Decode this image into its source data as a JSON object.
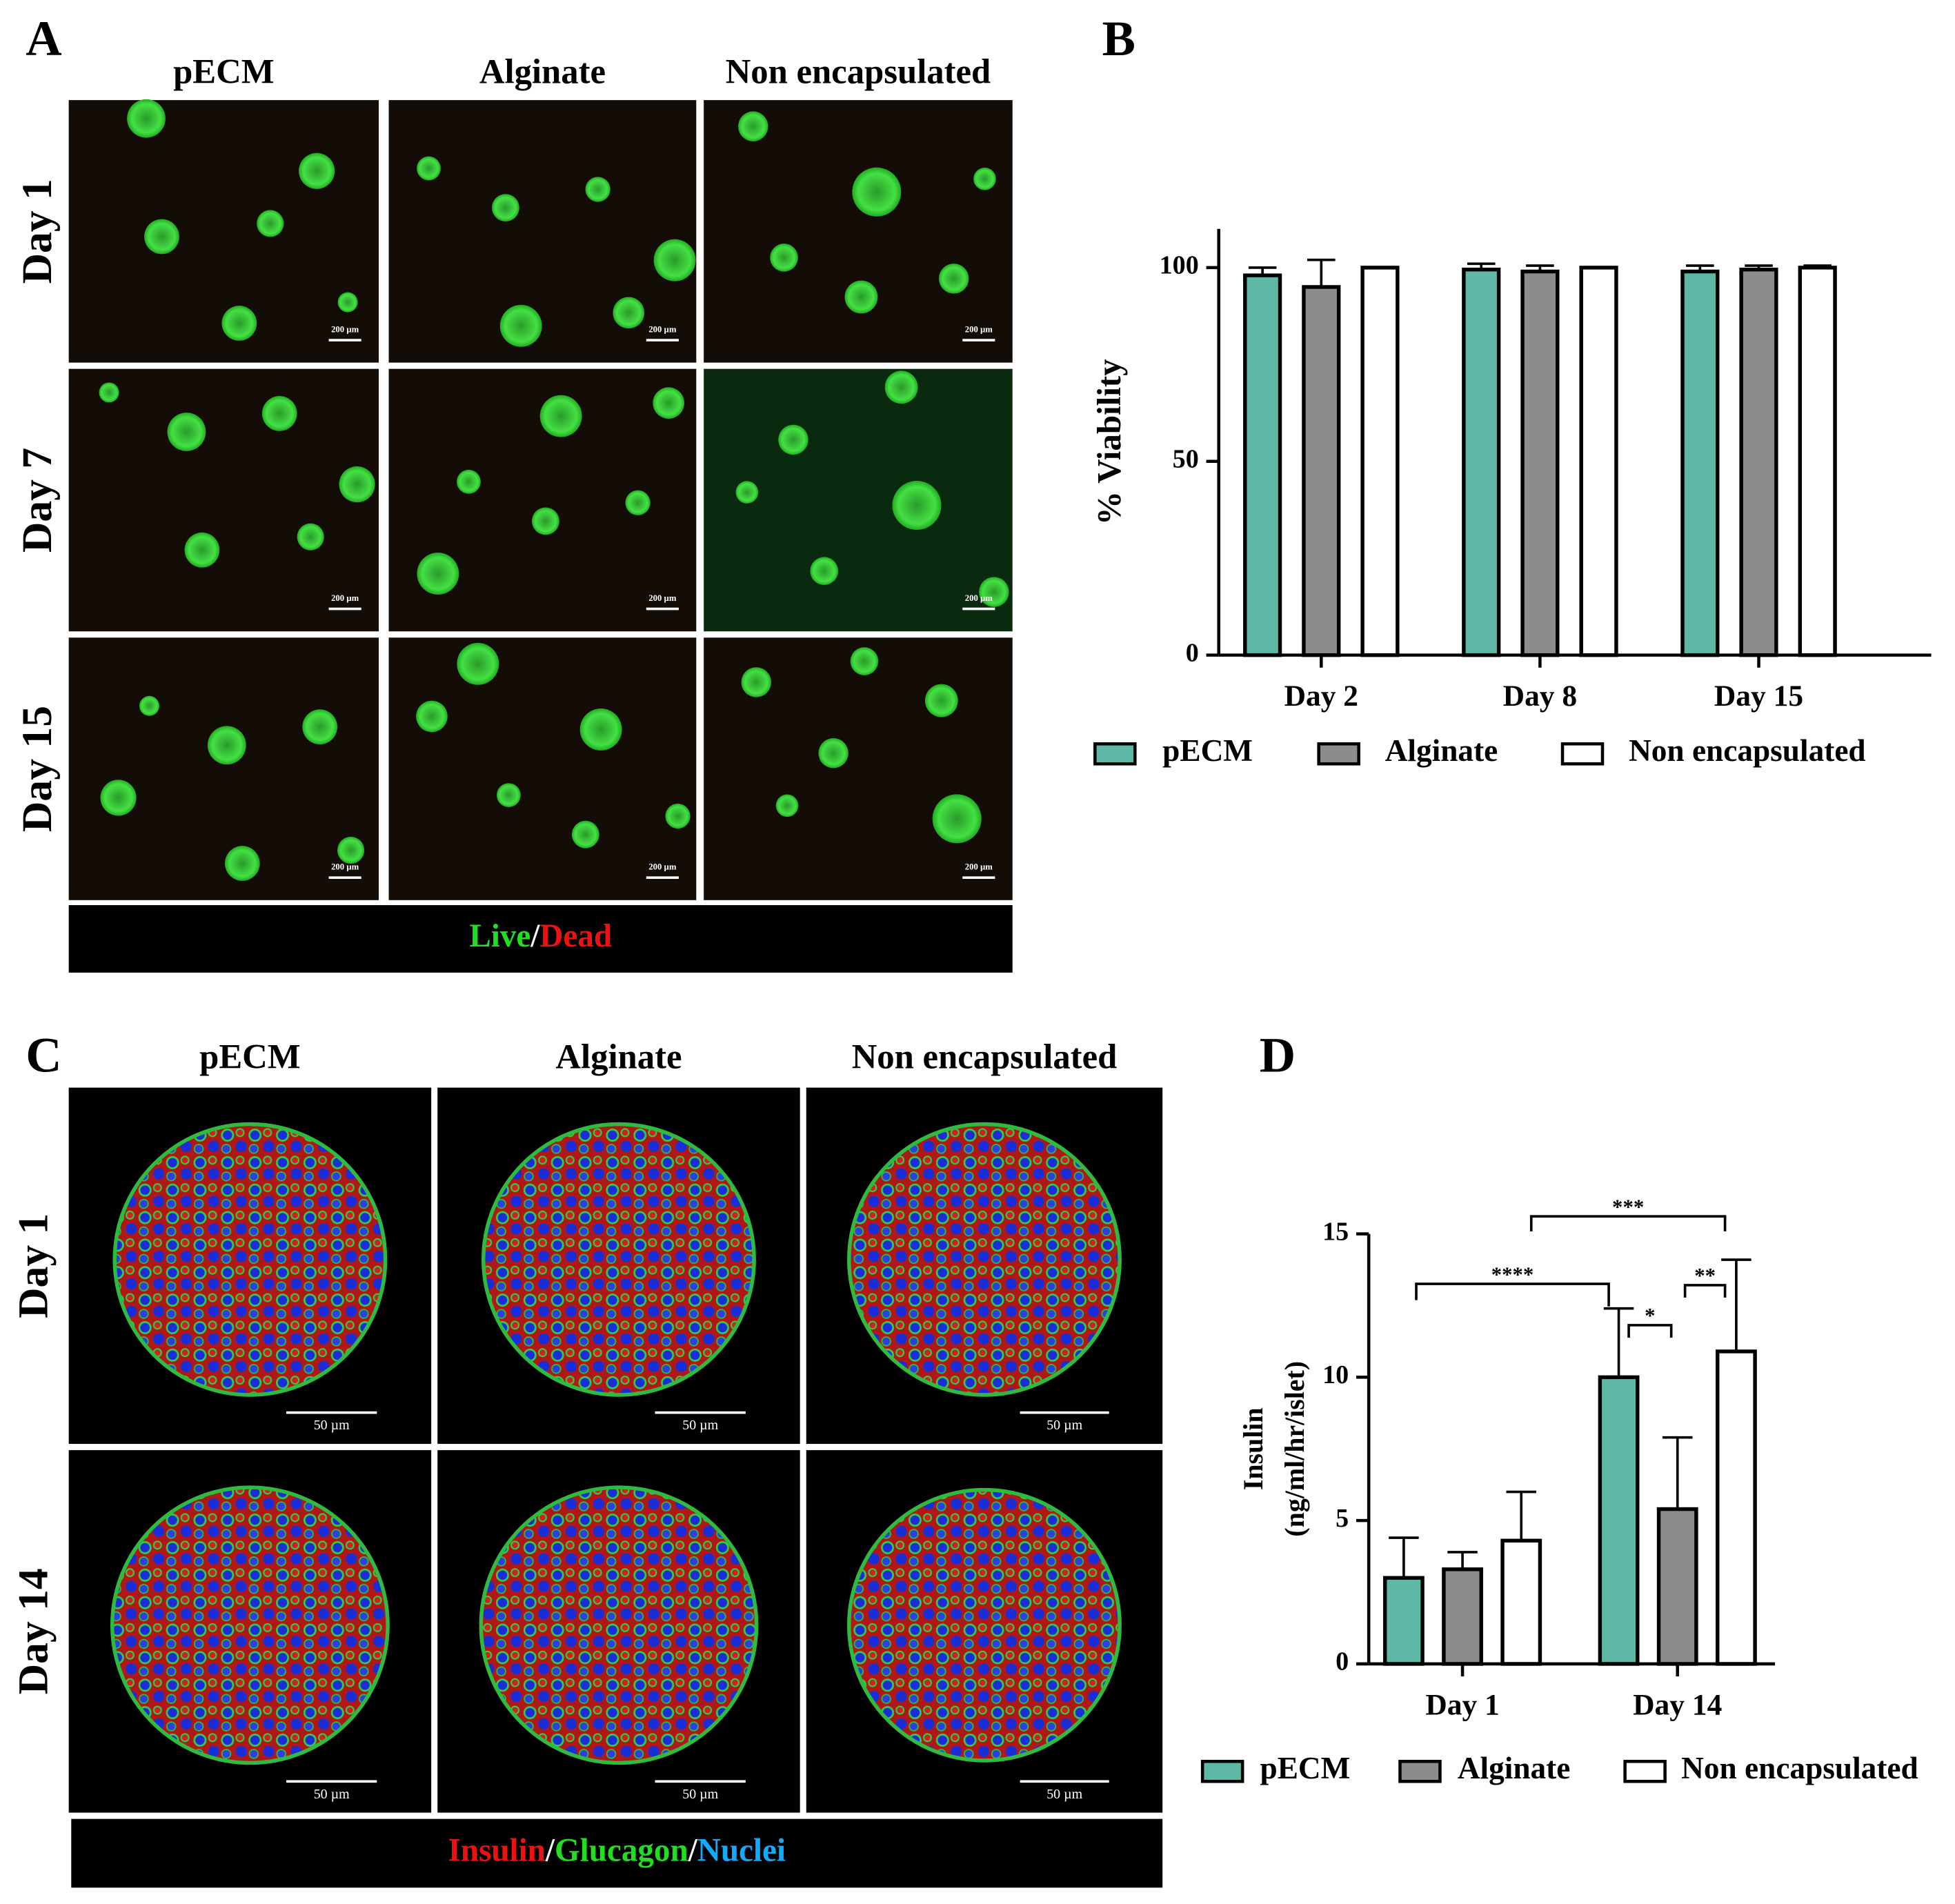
{
  "panel_a": {
    "label": "A",
    "columns": [
      "pECM",
      "Alginate",
      "Non encapsulated"
    ],
    "rows": [
      "Day 1",
      "Day 7",
      "Day 15"
    ],
    "scale_bar": "200 µm",
    "stain": [
      {
        "text": "Live",
        "color": "#22dd22"
      },
      {
        "text": "/",
        "color": "#ffffff"
      },
      {
        "text": "Dead",
        "color": "#ee1111"
      }
    ]
  },
  "panel_c": {
    "label": "C",
    "columns": [
      "pECM",
      "Alginate",
      "Non encapsulated"
    ],
    "rows": [
      "Day 1",
      "Day 14"
    ],
    "scale_bar": "50 µm",
    "stain": [
      {
        "text": "Insulin",
        "color": "#ee1111"
      },
      {
        "text": "/",
        "color": "#ffffff"
      },
      {
        "text": "Glucagon",
        "color": "#22dd22"
      },
      {
        "text": "/",
        "color": "#ffffff"
      },
      {
        "text": "Nuclei",
        "color": "#11aaff"
      }
    ]
  },
  "chart_data": [
    {
      "type": "bar",
      "panel_label": "B",
      "ylabel": [
        "% Viability"
      ],
      "categories": [
        "Day 2",
        "Day 8",
        "Day 15"
      ],
      "series": [
        {
          "name": "pECM",
          "color": "#5fb8a6",
          "values": [
            98,
            99.5,
            99
          ],
          "errors": [
            2,
            1.5,
            1.5
          ]
        },
        {
          "name": "Alginate",
          "color": "#8c8c8c",
          "values": [
            95,
            99,
            99.5
          ],
          "errors": [
            7,
            1.5,
            1
          ]
        },
        {
          "name": "Non encapsulated",
          "color": "#ffffff",
          "values": [
            100,
            100,
            100
          ],
          "errors": [
            0,
            0,
            0.5
          ]
        }
      ],
      "ylim": [
        0,
        110
      ],
      "yticks": [
        0,
        50,
        100
      ]
    },
    {
      "type": "bar",
      "panel_label": "D",
      "ylabel": [
        "Insulin",
        "(ng/ml/hr/islet)"
      ],
      "categories": [
        "Day 1",
        "Day 14"
      ],
      "series": [
        {
          "name": "pECM",
          "color": "#5fb8a6",
          "values": [
            3.0,
            10.0
          ],
          "errors": [
            1.4,
            2.4
          ]
        },
        {
          "name": "Alginate",
          "color": "#8c8c8c",
          "values": [
            3.3,
            5.4
          ],
          "errors": [
            0.6,
            2.5
          ]
        },
        {
          "name": "Non encapsulated",
          "color": "#ffffff",
          "values": [
            4.3,
            10.9
          ],
          "errors": [
            1.7,
            3.2
          ]
        }
      ],
      "ylim": [
        0,
        15
      ],
      "yticks": [
        0,
        5,
        10,
        15
      ],
      "annotations": [
        "****",
        "*",
        "**",
        "***"
      ]
    }
  ]
}
